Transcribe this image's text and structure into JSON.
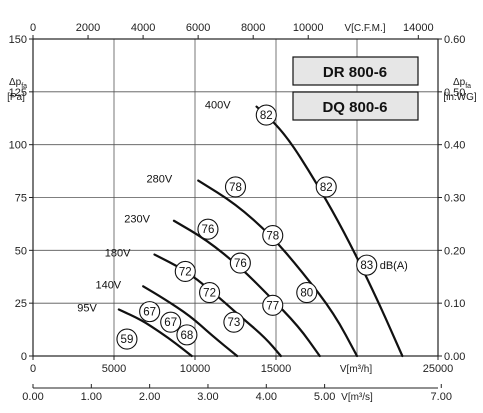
{
  "chart_data": {
    "type": "line",
    "models": [
      "DR 800-6",
      "DQ 800-6"
    ],
    "y_left": {
      "symbol": "Δp",
      "subscript": "fa",
      "unit": "[Pa]",
      "ticks": [
        0,
        25,
        50,
        75,
        100,
        125,
        150
      ],
      "range": [
        0,
        150
      ]
    },
    "y_right": {
      "symbol": "Δp",
      "subscript": "fa",
      "unit": "[in.WG]",
      "ticks": [
        "0.00",
        "0.10",
        "0.20",
        "0.30",
        "0.40",
        "0.50",
        "0.60"
      ],
      "range": [
        0,
        0.6
      ]
    },
    "x_top": {
      "label": "V[C.F.M.]",
      "ticks": [
        "0",
        "2000",
        "4000",
        "6000",
        "8000",
        "10000",
        "14000"
      ],
      "tick_values": [
        0,
        2000,
        4000,
        6000,
        8000,
        10000,
        14000
      ],
      "range": [
        0,
        14715
      ]
    },
    "x_bottom": {
      "label": "V[m³/h]",
      "ticks": [
        "0",
        "5000",
        "10000",
        "15000",
        "25000"
      ],
      "tick_values": [
        0,
        5000,
        10000,
        15000,
        25000
      ],
      "range": [
        0,
        25000
      ]
    },
    "x_bottom2": {
      "label": "V[m³/s]",
      "ticks": [
        "0.00",
        "1.00",
        "2.00",
        "3.00",
        "4.00",
        "5.00",
        "7.00"
      ],
      "tick_values": [
        0,
        1,
        2,
        3,
        4,
        5,
        7
      ],
      "range": [
        0,
        6.944
      ]
    },
    "grid_x": [
      0,
      5000,
      10000,
      15000,
      20000,
      25000
    ],
    "grid_y": [
      0,
      25,
      50,
      75,
      100,
      125,
      150
    ],
    "series": [
      {
        "name": "400V",
        "x": [
          13800,
          15500,
          17500,
          19400,
          21300,
          22800
        ],
        "y": [
          118,
          106,
          82,
          56,
          26,
          0
        ]
      },
      {
        "name": "280V",
        "x": [
          10200,
          12500,
          14700,
          16600,
          18600,
          20000
        ],
        "y": [
          83,
          72,
          57,
          40,
          20,
          0
        ]
      },
      {
        "name": "230V",
        "x": [
          8700,
          10700,
          12800,
          14500,
          16400,
          17700
        ],
        "y": [
          64,
          55,
          42,
          29,
          14,
          0
        ]
      },
      {
        "name": "180V",
        "x": [
          7500,
          9300,
          11000,
          12600,
          14300,
          15300
        ],
        "y": [
          48,
          41,
          31,
          20,
          9,
          0
        ]
      },
      {
        "name": "140V",
        "x": [
          6800,
          8100,
          9700,
          11000,
          12600
        ],
        "y": [
          33,
          27,
          19,
          10,
          0
        ]
      },
      {
        "name": "95V",
        "x": [
          5300,
          6700,
          7900,
          8800,
          9800
        ],
        "y": [
          22,
          17,
          11,
          6,
          0
        ]
      }
    ],
    "db_points": [
      {
        "label": "82",
        "x": 14400,
        "y": 114
      },
      {
        "label": "82",
        "x": 18100,
        "y": 80
      },
      {
        "label": "83",
        "x": 20600,
        "y": 43
      },
      {
        "label": "78",
        "x": 12500,
        "y": 80
      },
      {
        "label": "78",
        "x": 14800,
        "y": 57
      },
      {
        "name": "80",
        "label": "80",
        "x": 16900,
        "y": 30
      },
      {
        "label": "76",
        "x": 10800,
        "y": 60
      },
      {
        "label": "76",
        "x": 12800,
        "y": 44
      },
      {
        "label": "77",
        "x": 14800,
        "y": 24
      },
      {
        "label": "72",
        "x": 9400,
        "y": 40
      },
      {
        "label": "72",
        "x": 10900,
        "y": 30
      },
      {
        "label": "73",
        "x": 12400,
        "y": 16
      },
      {
        "label": "67",
        "x": 7200,
        "y": 21
      },
      {
        "label": "67",
        "x": 8500,
        "y": 16
      },
      {
        "label": "68",
        "x": 9500,
        "y": 10
      },
      {
        "label": "59",
        "x": 5800,
        "y": 8
      }
    ],
    "db_unit": "dB(A)",
    "grid": true,
    "legend": "top-right"
  }
}
